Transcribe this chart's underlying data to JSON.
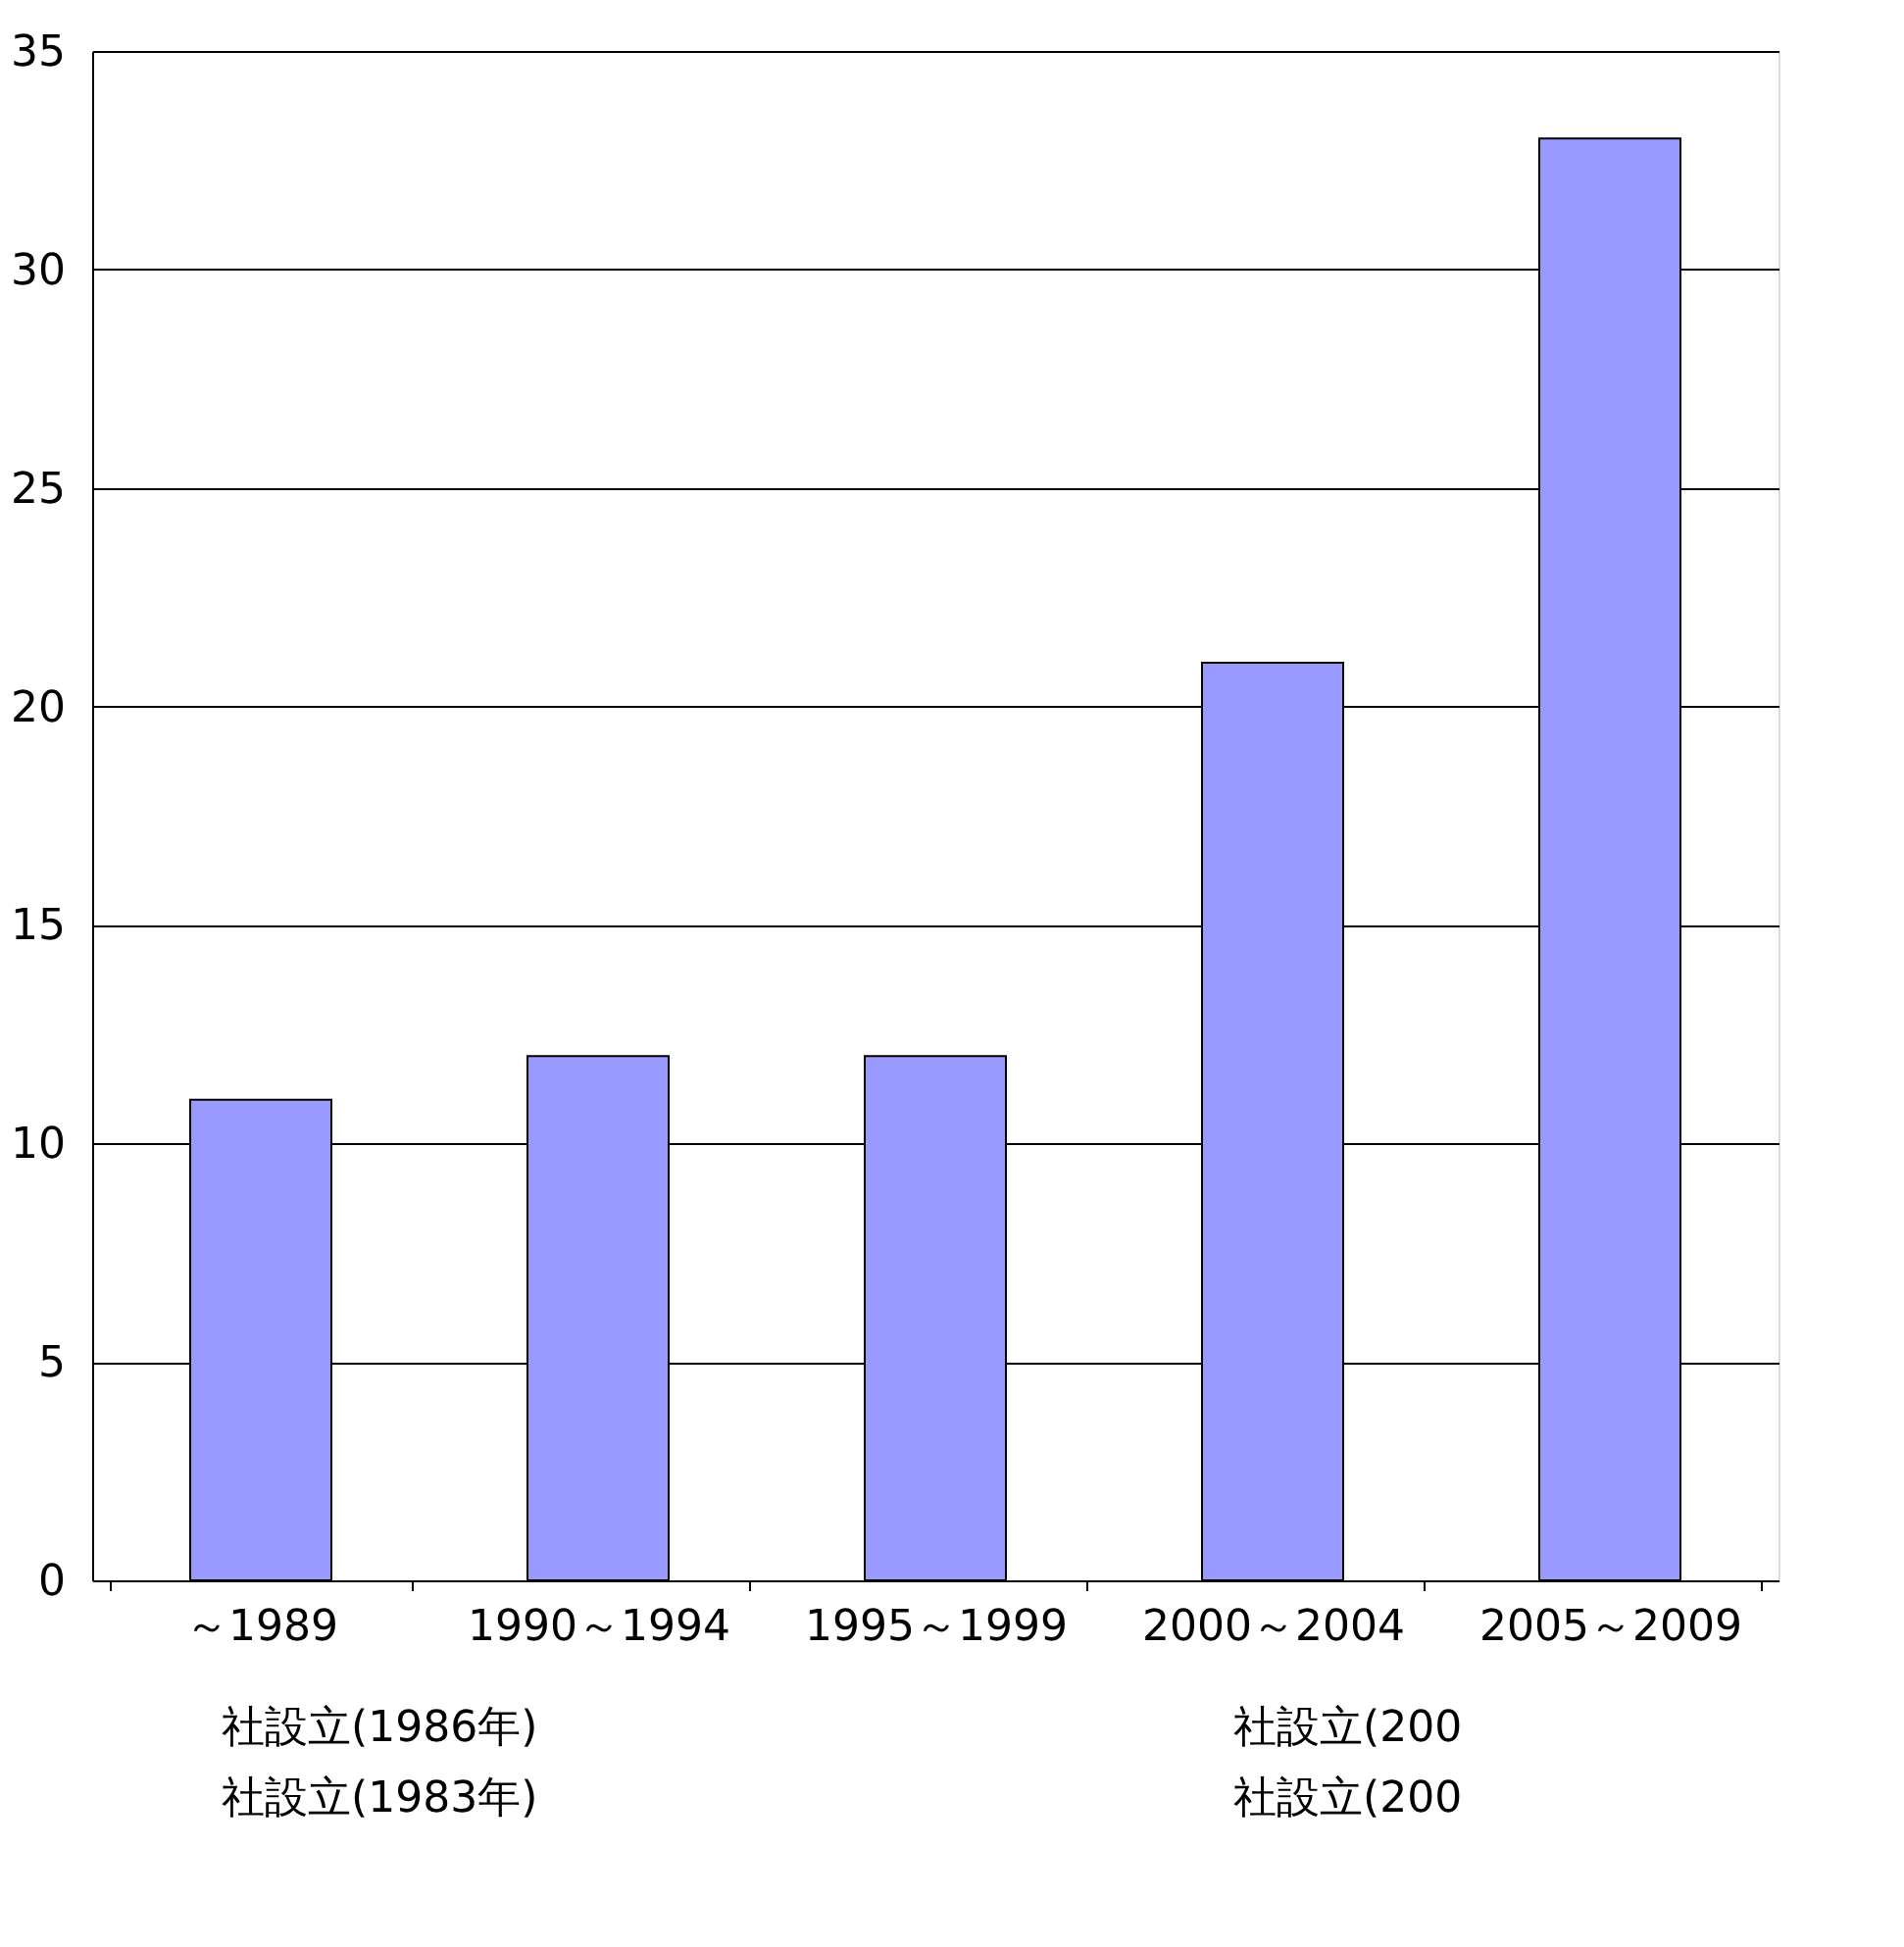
{
  "chart_data": {
    "type": "bar",
    "categories": [
      "～1989",
      "1990～1994",
      "1995～1999",
      "2000～2004",
      "2005～2009"
    ],
    "values": [
      11,
      12,
      12,
      21,
      33
    ],
    "color": "#9999ff",
    "ylim": [
      0,
      35
    ],
    "yticks": [
      0,
      5,
      10,
      15,
      20,
      25,
      30,
      35
    ],
    "grid": "y",
    "annotations": [
      "社設立(1986年)",
      "社設立(1983年)",
      "社設立(200",
      "社設立(200"
    ]
  }
}
